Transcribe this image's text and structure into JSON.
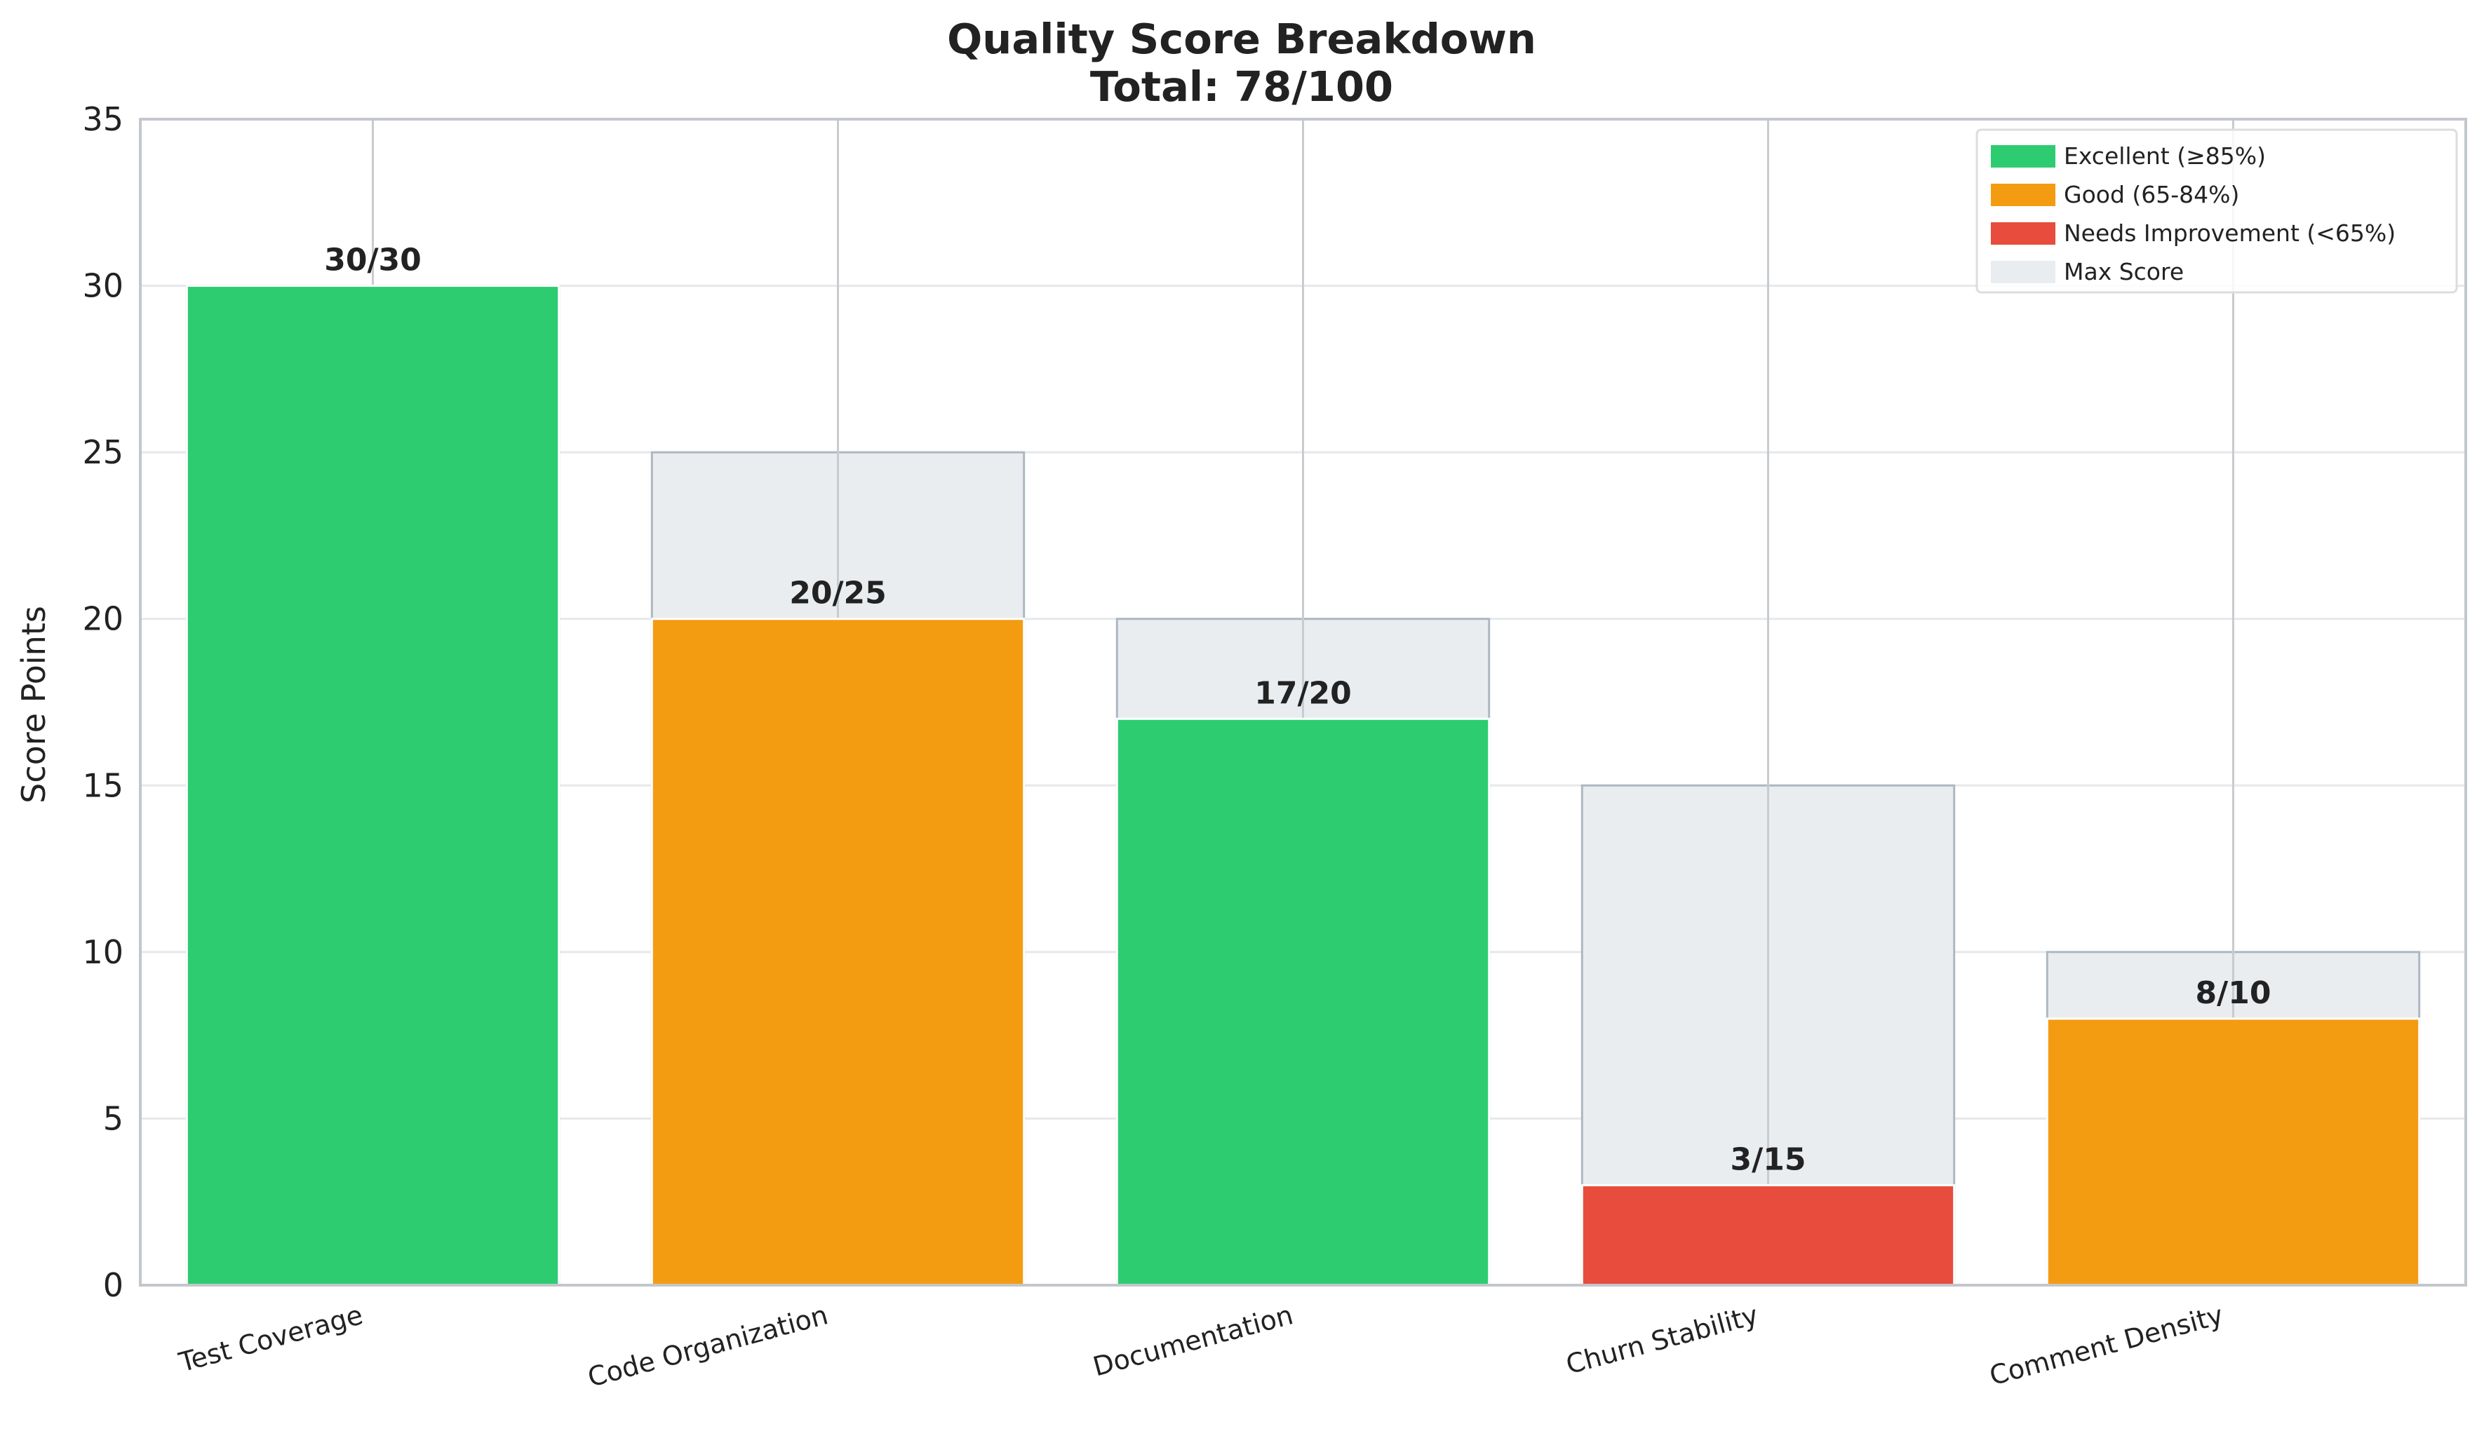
{
  "chart_data": {
    "type": "bar",
    "title": "Quality Score Breakdown",
    "subtitle": "Total: 78/100",
    "xlabel": "",
    "ylabel": "Score Points",
    "ylim": [
      0,
      35
    ],
    "yticks": [
      0,
      5,
      10,
      15,
      20,
      25,
      30,
      35
    ],
    "grid": true,
    "legend_position": "top-right",
    "categories": [
      "Test Coverage",
      "Code Organization",
      "Documentation",
      "Churn Stability",
      "Comment Density"
    ],
    "series": [
      {
        "name": "Max Score",
        "values": [
          30,
          25,
          20,
          15,
          10
        ],
        "color": "#eaedf0"
      },
      {
        "name": "Score",
        "values": [
          30,
          20,
          17,
          3,
          8
        ]
      }
    ],
    "bar_colors": [
      "#2ecc71",
      "#f39c12",
      "#2ecc71",
      "#e74c3c",
      "#f39c12"
    ],
    "data_labels": [
      "30/30",
      "20/25",
      "17/20",
      "3/15",
      "8/10"
    ],
    "legend": [
      {
        "label": "Excellent (≥85%)",
        "color": "#2ecc71"
      },
      {
        "label": "Good (65-84%)",
        "color": "#f39c12"
      },
      {
        "label": "Needs Improvement (<65%)",
        "color": "#e74c3c"
      },
      {
        "label": "Max Score",
        "color": "#eaedf0"
      }
    ]
  }
}
